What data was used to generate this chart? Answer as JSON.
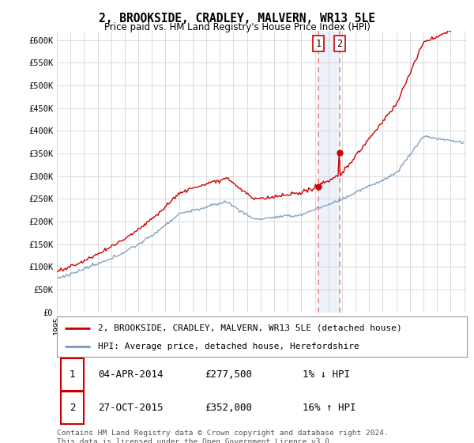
{
  "title": "2, BROOKSIDE, CRADLEY, MALVERN, WR13 5LE",
  "subtitle": "Price paid vs. HM Land Registry's House Price Index (HPI)",
  "legend_line1": "2, BROOKSIDE, CRADLEY, MALVERN, WR13 5LE (detached house)",
  "legend_line2": "HPI: Average price, detached house, Herefordshire",
  "transaction1_date": "04-APR-2014",
  "transaction1_price": "£277,500",
  "transaction1_hpi": "1% ↓ HPI",
  "transaction2_date": "27-OCT-2015",
  "transaction2_price": "£352,000",
  "transaction2_hpi": "16% ↑ HPI",
  "footer": "Contains HM Land Registry data © Crown copyright and database right 2024.\nThis data is licensed under the Open Government Licence v3.0.",
  "ylim": [
    0,
    620000
  ],
  "yticks": [
    0,
    50000,
    100000,
    150000,
    200000,
    250000,
    300000,
    350000,
    400000,
    450000,
    500000,
    550000,
    600000
  ],
  "ytick_labels": [
    "£0",
    "£50K",
    "£100K",
    "£150K",
    "£200K",
    "£250K",
    "£300K",
    "£350K",
    "£400K",
    "£450K",
    "£500K",
    "£550K",
    "£600K"
  ],
  "red_color": "#cc0000",
  "blue_color": "#7799bb",
  "vline_color": "#bbccee",
  "dashed_color": "#ee8888",
  "background_color": "#ffffff",
  "grid_color": "#cccccc",
  "transaction1_x": 2014.25,
  "transaction2_x": 2015.83,
  "transaction1_y": 277500,
  "transaction2_y": 352000,
  "xlim_left": 1995.0,
  "xlim_right": 2025.2
}
